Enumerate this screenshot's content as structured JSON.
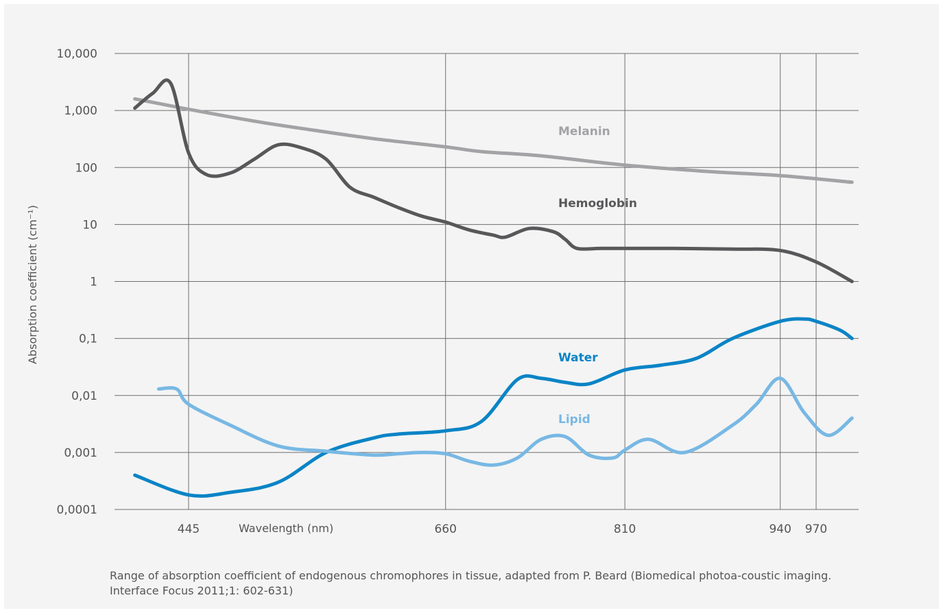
{
  "chart_data": {
    "type": "line",
    "title": "",
    "xlabel": "Wavelength (nm)",
    "ylabel": "Absorption coefficient  (cm⁻¹)",
    "y_scale": "log",
    "ylim": [
      0.0001,
      10000
    ],
    "xlim": [
      400,
      1000
    ],
    "grid": true,
    "legend": "inline labels",
    "x_ticks": [
      "445",
      "660",
      "810",
      "940",
      "970"
    ],
    "x_tick_values": [
      445,
      660,
      810,
      940,
      970
    ],
    "y_ticks": [
      "10,000",
      "1,000",
      "100",
      "10",
      "1",
      "0,1",
      "0,01",
      "0,001",
      "0,0001"
    ],
    "y_tick_values": [
      10000,
      1000,
      100,
      10,
      1,
      0.1,
      0.01,
      0.001,
      0.0001
    ],
    "series": [
      {
        "name": "Melanin",
        "color": "#a3a3a6",
        "x": [
          400,
          445,
          500,
          550,
          600,
          660,
          690,
          740,
          810,
          880,
          940,
          1000
        ],
        "y": [
          1600,
          1050,
          650,
          450,
          320,
          230,
          190,
          160,
          110,
          85,
          72,
          55
        ]
      },
      {
        "name": "Hemoglobin",
        "color": "#58585a",
        "x": [
          400,
          415,
          430,
          445,
          460,
          480,
          500,
          520,
          540,
          560,
          580,
          600,
          620,
          640,
          660,
          680,
          700,
          710,
          730,
          750,
          760,
          770,
          790,
          810,
          850,
          900,
          940,
          970,
          1000
        ],
        "y": [
          1100,
          2000,
          3000,
          180,
          75,
          80,
          140,
          250,
          220,
          140,
          45,
          30,
          20,
          14,
          11,
          8,
          6.5,
          6,
          8.5,
          7.5,
          5.5,
          3.8,
          3.8,
          3.8,
          3.8,
          3.7,
          3.5,
          2.2,
          1
        ]
      },
      {
        "name": "Water",
        "color": "#0a84c6",
        "x": [
          400,
          445,
          480,
          520,
          560,
          600,
          620,
          660,
          690,
          720,
          740,
          760,
          780,
          810,
          840,
          870,
          900,
          940,
          960,
          970,
          990,
          1000
        ],
        "y": [
          0.0004,
          0.00018,
          0.0002,
          0.0003,
          0.001,
          0.0018,
          0.0021,
          0.0024,
          0.0035,
          0.019,
          0.02,
          0.017,
          0.016,
          0.028,
          0.034,
          0.045,
          0.1,
          0.2,
          0.22,
          0.2,
          0.14,
          0.1
        ]
      },
      {
        "name": "Lipid",
        "color": "#78b8e4",
        "x": [
          420,
          435,
          445,
          480,
          520,
          560,
          600,
          620,
          640,
          660,
          680,
          700,
          720,
          740,
          760,
          780,
          800,
          810,
          830,
          860,
          900,
          920,
          940,
          960,
          980,
          1000
        ],
        "y": [
          0.013,
          0.013,
          0.007,
          0.003,
          0.0013,
          0.00105,
          0.0009,
          0.00095,
          0.001,
          0.00095,
          0.0007,
          0.0006,
          0.0008,
          0.0017,
          0.0019,
          0.0009,
          0.0008,
          0.0011,
          0.0017,
          0.001,
          0.003,
          0.007,
          0.02,
          0.005,
          0.002,
          0.004
        ]
      }
    ]
  },
  "caption": "Range of absorption coefficient of endogenous chromophores in tissue, adapted from P. Beard (Biomedical photoa-coustic imaging. Interface Focus 2011;1: 602-631)"
}
